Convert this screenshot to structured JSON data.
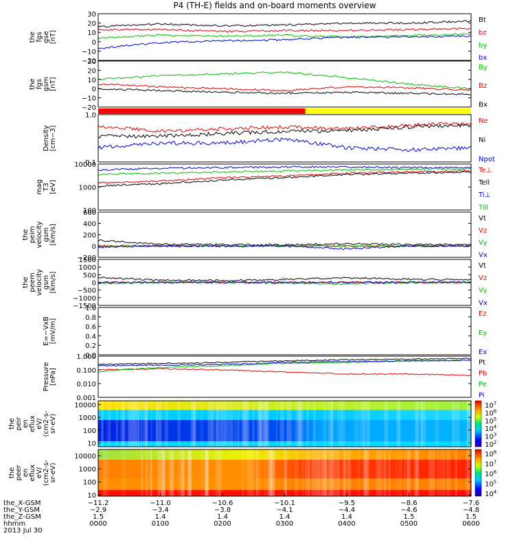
{
  "chart_data": {
    "type": "line",
    "title": "P4 (TH-E) fields and on-board moments overview",
    "x": [
      "0000",
      "0100",
      "0200",
      "0300",
      "0400",
      "0500",
      "0600"
    ],
    "panels": [
      {
        "id": "fgs-gse",
        "ylabel": [
          "the",
          "fgs",
          "gse",
          "[nT]"
        ],
        "ticks": [
          "30",
          "20",
          "10",
          "0",
          "−10",
          "−20"
        ],
        "ylim": [
          -20,
          30
        ],
        "scale": "linear",
        "series": [
          {
            "name": "Bt",
            "color": "#000000",
            "values": [
              16,
              19,
              17,
              18,
              20,
              20,
              22
            ]
          },
          {
            "name": "bz",
            "color": "#e00000",
            "values": [
              13,
              13,
              11,
              12,
              12,
              13,
              14
            ]
          },
          {
            "name": "by",
            "color": "#00c000",
            "values": [
              4,
              7,
              6,
              7,
              5,
              7,
              8
            ]
          },
          {
            "name": "bx",
            "color": "#0000d0",
            "values": [
              -7,
              -1,
              1,
              2,
              5,
              5,
              6
            ]
          }
        ]
      },
      {
        "id": "fgs-gsm",
        "ylabel": [
          "the",
          "fgs",
          "gsm",
          "[nT]"
        ],
        "ticks": [
          "30",
          "20",
          "10",
          "0",
          "−10",
          "−20"
        ],
        "ylim": [
          -20,
          30
        ],
        "scale": "linear",
        "series": [
          {
            "name": "By",
            "color": "#00c000",
            "values": [
              10,
              14,
              16,
              18,
              12,
              5,
              0
            ]
          },
          {
            "name": "Bz",
            "color": "#e00000",
            "values": [
              5,
              2,
              0,
              -2,
              2,
              1,
              -2
            ]
          },
          {
            "name": "Bx",
            "color": "#000000",
            "values": [
              0,
              -2,
              -4,
              -5,
              -4,
              -5,
              -6
            ]
          }
        ]
      },
      {
        "id": "density",
        "ylabel": [
          "Density",
          "[cm−3]"
        ],
        "ticks": [
          "1.0",
          "0.1"
        ],
        "ylim": [
          0.1,
          1.0
        ],
        "scale": "log",
        "series": [
          {
            "name": "Ne",
            "color": "#e00000",
            "values": [
              0.55,
              0.45,
              0.5,
              0.55,
              0.5,
              0.6,
              0.65
            ]
          },
          {
            "name": "Ni",
            "color": "#000000",
            "values": [
              0.35,
              0.35,
              0.4,
              0.45,
              0.45,
              0.55,
              0.6
            ]
          },
          {
            "name": "Npot",
            "color": "#0000d0",
            "values": [
              0.2,
              0.25,
              0.25,
              0.3,
              0.2,
              0.18,
              0.2
            ]
          }
        ]
      },
      {
        "id": "temperature",
        "ylabel": [
          "mag",
          "T3",
          "[eV]"
        ],
        "ticks": [
          "10000",
          "1000",
          "100"
        ],
        "ylim": [
          100,
          10000
        ],
        "scale": "log",
        "series": [
          {
            "name": "Te⊥",
            "color": "#e00000",
            "values": [
              1500,
              1800,
              2500,
              3000,
              4000,
              4500,
              5000
            ]
          },
          {
            "name": "Tell",
            "color": "#000000",
            "values": [
              1100,
              1400,
              2000,
              2500,
              3500,
              4000,
              4500
            ]
          },
          {
            "name": "Ti⊥",
            "color": "#0000d0",
            "values": [
              5500,
              6500,
              7000,
              7500,
              7500,
              7000,
              7000
            ]
          },
          {
            "name": "Till",
            "color": "#00c000",
            "values": [
              3500,
              4000,
              4500,
              5000,
              5500,
              6000,
              6000
            ]
          }
        ]
      },
      {
        "id": "peim-velocity",
        "ylabel": [
          "the",
          "peim",
          "velocity",
          "gsm",
          "[km/s]"
        ],
        "ticks": [
          "600",
          "400",
          "200",
          "0",
          "−200"
        ],
        "ylim": [
          -200,
          600
        ],
        "scale": "linear",
        "series": [
          {
            "name": "Vt",
            "color": "#000000",
            "values": [
              100,
              30,
              25,
              20,
              40,
              25,
              20
            ]
          },
          {
            "name": "Vz",
            "color": "#e00000",
            "values": [
              10,
              0,
              0,
              5,
              0,
              0,
              0
            ]
          },
          {
            "name": "Vy",
            "color": "#00c000",
            "values": [
              -10,
              0,
              0,
              0,
              0,
              0,
              0
            ]
          },
          {
            "name": "Vx",
            "color": "#0000d0",
            "values": [
              -20,
              0,
              -5,
              0,
              -50,
              0,
              0
            ]
          }
        ]
      },
      {
        "id": "peem-velocity",
        "ylabel": [
          "the",
          "peem",
          "velocity",
          "gsm",
          "[km/s]"
        ],
        "ticks": [
          "1500",
          "1000",
          "500",
          "0",
          "−500",
          "−1000",
          "−1500"
        ],
        "ylim": [
          -1500,
          1500
        ],
        "scale": "linear",
        "series": [
          {
            "name": "Vt",
            "color": "#000000",
            "values": [
              300,
              150,
              120,
              200,
              300,
              200,
              150
            ]
          },
          {
            "name": "Vz",
            "color": "#e00000",
            "values": [
              0,
              0,
              0,
              0,
              0,
              0,
              0
            ]
          },
          {
            "name": "Vy",
            "color": "#00c000",
            "values": [
              -100,
              0,
              0,
              -50,
              -100,
              0,
              0
            ]
          },
          {
            "name": "Vx",
            "color": "#0000d0",
            "values": [
              0,
              0,
              0,
              0,
              0,
              0,
              0
            ]
          }
        ]
      },
      {
        "id": "efield",
        "ylabel": [
          "E=−VxB",
          "[mV/m]"
        ],
        "ticks": [
          "1.0",
          "0.8",
          "0.6",
          "0.4",
          "0.2",
          "0.0"
        ],
        "ylim": [
          0.0,
          1.0
        ],
        "scale": "linear",
        "series": [
          {
            "name": "Ez",
            "color": "#e00000",
            "values": []
          },
          {
            "name": "Ey",
            "color": "#00c000",
            "values": []
          },
          {
            "name": "Ex",
            "color": "#0000d0",
            "values": []
          }
        ]
      },
      {
        "id": "pressure",
        "ylabel": [
          "Pressure",
          "[nPa]"
        ],
        "ticks": [
          "1.000",
          "0.100",
          "0.010",
          "0.001"
        ],
        "ylim": [
          0.001,
          1.0
        ],
        "scale": "log",
        "series": [
          {
            "name": "Pt",
            "color": "#000000",
            "values": [
              0.25,
              0.3,
              0.35,
              0.45,
              0.55,
              0.6,
              0.7
            ]
          },
          {
            "name": "Pb",
            "color": "#e00000",
            "values": [
              0.1,
              0.12,
              0.1,
              0.07,
              0.05,
              0.05,
              0.04
            ]
          },
          {
            "name": "Pe",
            "color": "#00c000",
            "values": [
              0.07,
              0.15,
              0.2,
              0.3,
              0.35,
              0.45,
              0.5
            ]
          },
          {
            "name": "Pi",
            "color": "#0000d0",
            "values": [
              0.2,
              0.22,
              0.25,
              0.35,
              0.4,
              0.45,
              0.5
            ]
          }
        ]
      },
      {
        "id": "peir-efflux",
        "type": "heatmap",
        "ylabel": [
          "the",
          "peir",
          "en",
          "eflux",
          "eV/",
          "(cm2-s-",
          "sr-eV)"
        ],
        "ticks": [
          "10000",
          "1000",
          "100",
          "10"
        ],
        "ylim": [
          5,
          20000
        ],
        "scale": "log",
        "colorbar": {
          "ticks": [
            "107",
            "106",
            "105",
            "104",
            "103",
            "102"
          ],
          "exponents": [
            "7",
            "6",
            "5",
            "4",
            "3",
            "2"
          ]
        }
      },
      {
        "id": "peer-efflux",
        "type": "heatmap",
        "ylabel": [
          "the",
          "peer",
          "en",
          "eflux",
          "eV/",
          "(cm2-s-",
          "sr-eV)"
        ],
        "ticks": [
          "10000",
          "1000",
          "100",
          "10"
        ],
        "ylim": [
          8,
          30000
        ],
        "scale": "log",
        "colorbar": {
          "ticks": [
            "108",
            "107",
            "106",
            "105",
            "104"
          ],
          "exponents": [
            "8",
            "7",
            "6",
            "5",
            "4"
          ]
        }
      }
    ],
    "status_bar": {
      "red_until": "0320",
      "yellow_from": "0320"
    },
    "footer_rows": [
      {
        "label": "the_X-GSM",
        "values": [
          "−11.2",
          "−11.0",
          "−10.6",
          "−10.1",
          "−9.5",
          "−8.6",
          "−7.6"
        ]
      },
      {
        "label": "the_Y-GSM",
        "values": [
          "−2.9",
          "−3.4",
          "−3.8",
          "−4.1",
          "−4.4",
          "−4.6",
          "−4.8"
        ]
      },
      {
        "label": "the_Z-GSM",
        "values": [
          "1.5",
          "1.4",
          "1.4",
          "1.4",
          "1.4",
          "1.5",
          "1.5"
        ]
      },
      {
        "label": "hhmm",
        "values": [
          "0000",
          "0100",
          "0200",
          "0300",
          "0400",
          "0500",
          "0600"
        ]
      }
    ],
    "date": "2013 Jul 30"
  }
}
